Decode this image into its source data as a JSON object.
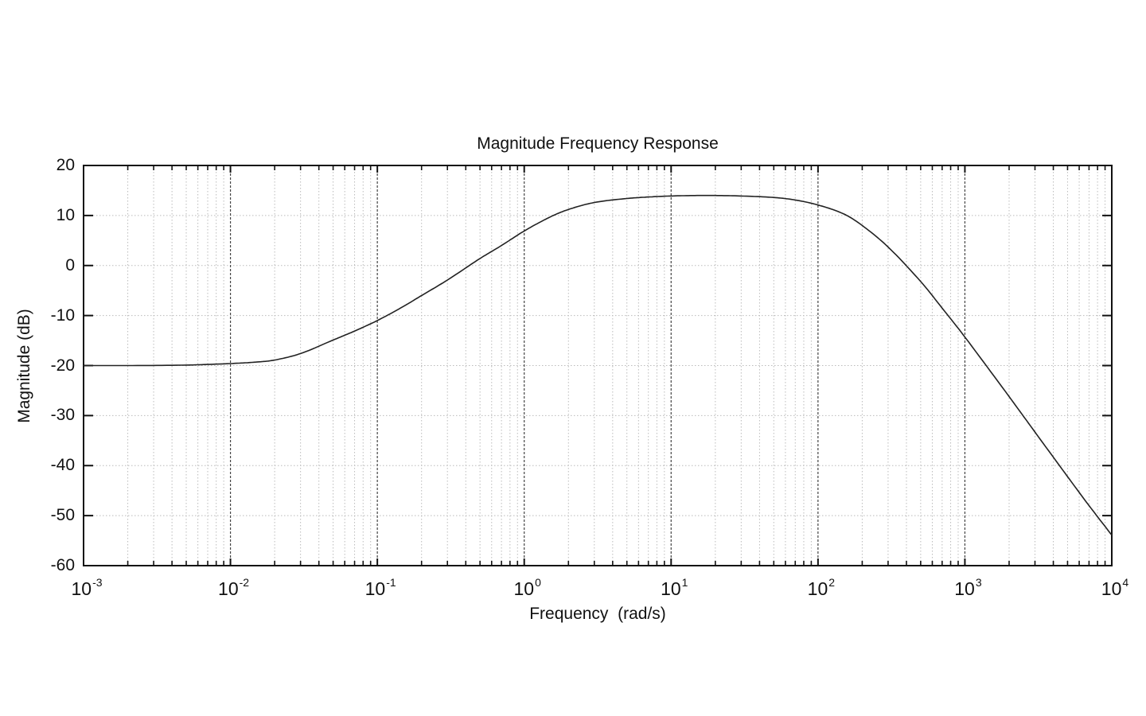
{
  "chart_data": {
    "type": "line",
    "title": "Magnitude Frequency Response",
    "xlabel": "Frequency  (rad/s)",
    "ylabel": "Magnitude (dB)",
    "xscale": "log",
    "xlim": [
      0.001,
      10000
    ],
    "ylim": [
      -60,
      20
    ],
    "grid": true,
    "legend": null,
    "x_tick_labels": [
      {
        "base": "10",
        "exp": "-3",
        "value": 0.001
      },
      {
        "base": "10",
        "exp": "-2",
        "value": 0.01
      },
      {
        "base": "10",
        "exp": "-1",
        "value": 0.1
      },
      {
        "base": "10",
        "exp": "0",
        "value": 1
      },
      {
        "base": "10",
        "exp": "1",
        "value": 10
      },
      {
        "base": "10",
        "exp": "2",
        "value": 100
      },
      {
        "base": "10",
        "exp": "3",
        "value": 1000
      },
      {
        "base": "10",
        "exp": "4",
        "value": 10000
      }
    ],
    "y_tick_labels": [
      "20",
      "10",
      "0",
      "-10",
      "-20",
      "-30",
      "-40",
      "-50",
      "-60"
    ],
    "y_ticks": [
      20,
      10,
      0,
      -10,
      -20,
      -30,
      -40,
      -50,
      -60
    ],
    "series": [
      {
        "name": "Magnitude",
        "color": "#222222",
        "x": [
          0.001,
          0.002,
          0.005,
          0.01,
          0.015,
          0.02,
          0.03,
          0.05,
          0.07,
          0.1,
          0.15,
          0.2,
          0.3,
          0.5,
          0.7,
          1,
          1.5,
          2,
          3,
          5,
          7,
          10,
          15,
          20,
          30,
          50,
          70,
          100,
          150,
          200,
          300,
          500,
          700,
          1000,
          2000,
          3000,
          5000,
          7000,
          10000
        ],
        "y": [
          -20.0,
          -20.0,
          -19.9,
          -19.6,
          -19.3,
          -18.9,
          -17.6,
          -14.9,
          -13.1,
          -11.0,
          -8.2,
          -6.0,
          -2.9,
          1.4,
          4.0,
          6.9,
          9.7,
          11.2,
          12.6,
          13.4,
          13.7,
          13.9,
          14.0,
          14.0,
          13.9,
          13.6,
          13.1,
          12.1,
          10.3,
          8.0,
          3.7,
          -3.2,
          -8.5,
          -14.3,
          -26.2,
          -33.3,
          -42.2,
          -48.0,
          -53.9
        ]
      }
    ]
  },
  "colors": {
    "line": "#222222",
    "axes": "#111111",
    "major_grid": "#444444",
    "minor_grid": "#bbbbbb",
    "background": "#ffffff"
  }
}
